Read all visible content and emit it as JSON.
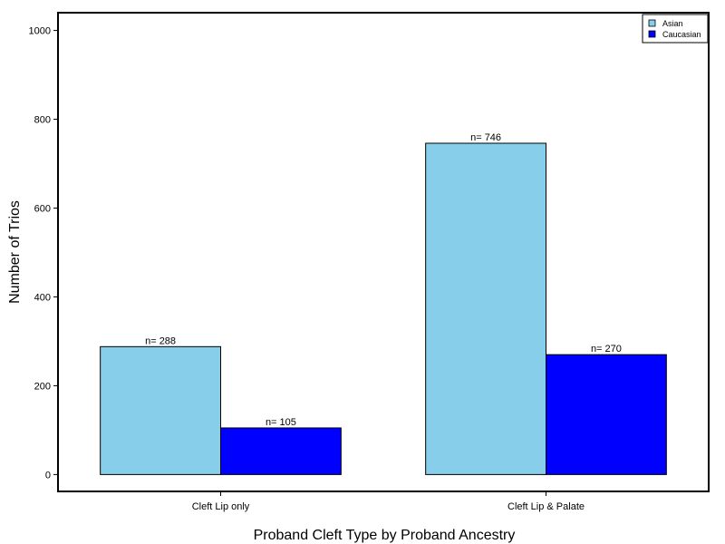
{
  "chart_data": {
    "type": "bar",
    "title": "",
    "xlabel": "Proband Cleft Type by Proband Ancestry",
    "ylabel": "Number of Trios",
    "categories": [
      "Cleft Lip only",
      "Cleft Lip & Palate"
    ],
    "series": [
      {
        "name": "Asian",
        "values": [
          288,
          746
        ],
        "labels": [
          "n= 288",
          "n= 746"
        ],
        "color": "#87ceeb"
      },
      {
        "name": "Caucasian",
        "values": [
          105,
          270
        ],
        "labels": [
          "n= 105",
          "n= 270"
        ],
        "color": "#0000ff"
      }
    ],
    "ylim": [
      -38,
      1040
    ],
    "yticks": [
      0,
      200,
      400,
      600,
      800,
      1000
    ],
    "ytick_labels": [
      "0",
      "200",
      "400",
      "600",
      "800",
      "1000"
    ],
    "grid": false,
    "legend_position": "top-right"
  }
}
